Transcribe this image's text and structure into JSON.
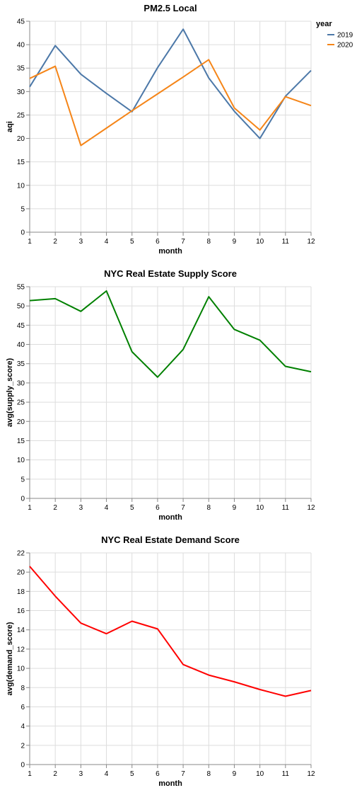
{
  "chart_data": [
    {
      "type": "line",
      "title": "PM2.5 Local",
      "xlabel": "month",
      "ylabel": "aqi",
      "x": [
        1,
        2,
        3,
        4,
        5,
        6,
        7,
        8,
        9,
        10,
        11,
        12
      ],
      "xlim": [
        1,
        12
      ],
      "ylim": [
        0,
        45
      ],
      "yticks": [
        0,
        5,
        10,
        15,
        20,
        25,
        30,
        35,
        40,
        45
      ],
      "grid": true,
      "legend": {
        "title": "year",
        "placement": "right"
      },
      "series": [
        {
          "name": "2019",
          "color": "#4c78a8",
          "values": [
            31.0,
            39.8,
            33.7,
            29.6,
            25.7,
            35.1,
            43.3,
            32.9,
            25.8,
            20.0,
            29.0,
            34.5
          ]
        },
        {
          "name": "2020",
          "color": "#f58518",
          "values": [
            32.8,
            35.4,
            18.5,
            22.2,
            25.9,
            29.5,
            33.1,
            36.8,
            26.5,
            21.8,
            28.9,
            27.0
          ]
        }
      ]
    },
    {
      "type": "line",
      "title": "NYC Real Estate Supply Score",
      "xlabel": "month",
      "ylabel": "avg(supply_score)",
      "x": [
        1,
        2,
        3,
        4,
        5,
        6,
        7,
        8,
        9,
        10,
        11,
        12
      ],
      "xlim": [
        1,
        12
      ],
      "ylim": [
        0,
        55
      ],
      "yticks": [
        0,
        5,
        10,
        15,
        20,
        25,
        30,
        35,
        40,
        45,
        50,
        55
      ],
      "grid": true,
      "series": [
        {
          "color": "#008000",
          "values": [
            51.4,
            51.9,
            48.6,
            53.9,
            38.1,
            31.5,
            38.7,
            52.4,
            43.9,
            41.1,
            34.3,
            32.9
          ]
        }
      ]
    },
    {
      "type": "line",
      "title": "NYC Real Estate Demand Score",
      "xlabel": "month",
      "ylabel": "avg(demand_score)",
      "x": [
        1,
        2,
        3,
        4,
        5,
        6,
        7,
        8,
        9,
        10,
        11,
        12
      ],
      "xlim": [
        1,
        12
      ],
      "ylim": [
        0,
        22
      ],
      "yticks": [
        0,
        2,
        4,
        6,
        8,
        10,
        12,
        14,
        16,
        18,
        20,
        22
      ],
      "grid": true,
      "series": [
        {
          "color": "#ff0000",
          "values": [
            20.6,
            17.5,
            14.7,
            13.6,
            14.9,
            14.1,
            10.4,
            9.3,
            8.6,
            7.8,
            7.1,
            7.7
          ]
        }
      ]
    }
  ]
}
